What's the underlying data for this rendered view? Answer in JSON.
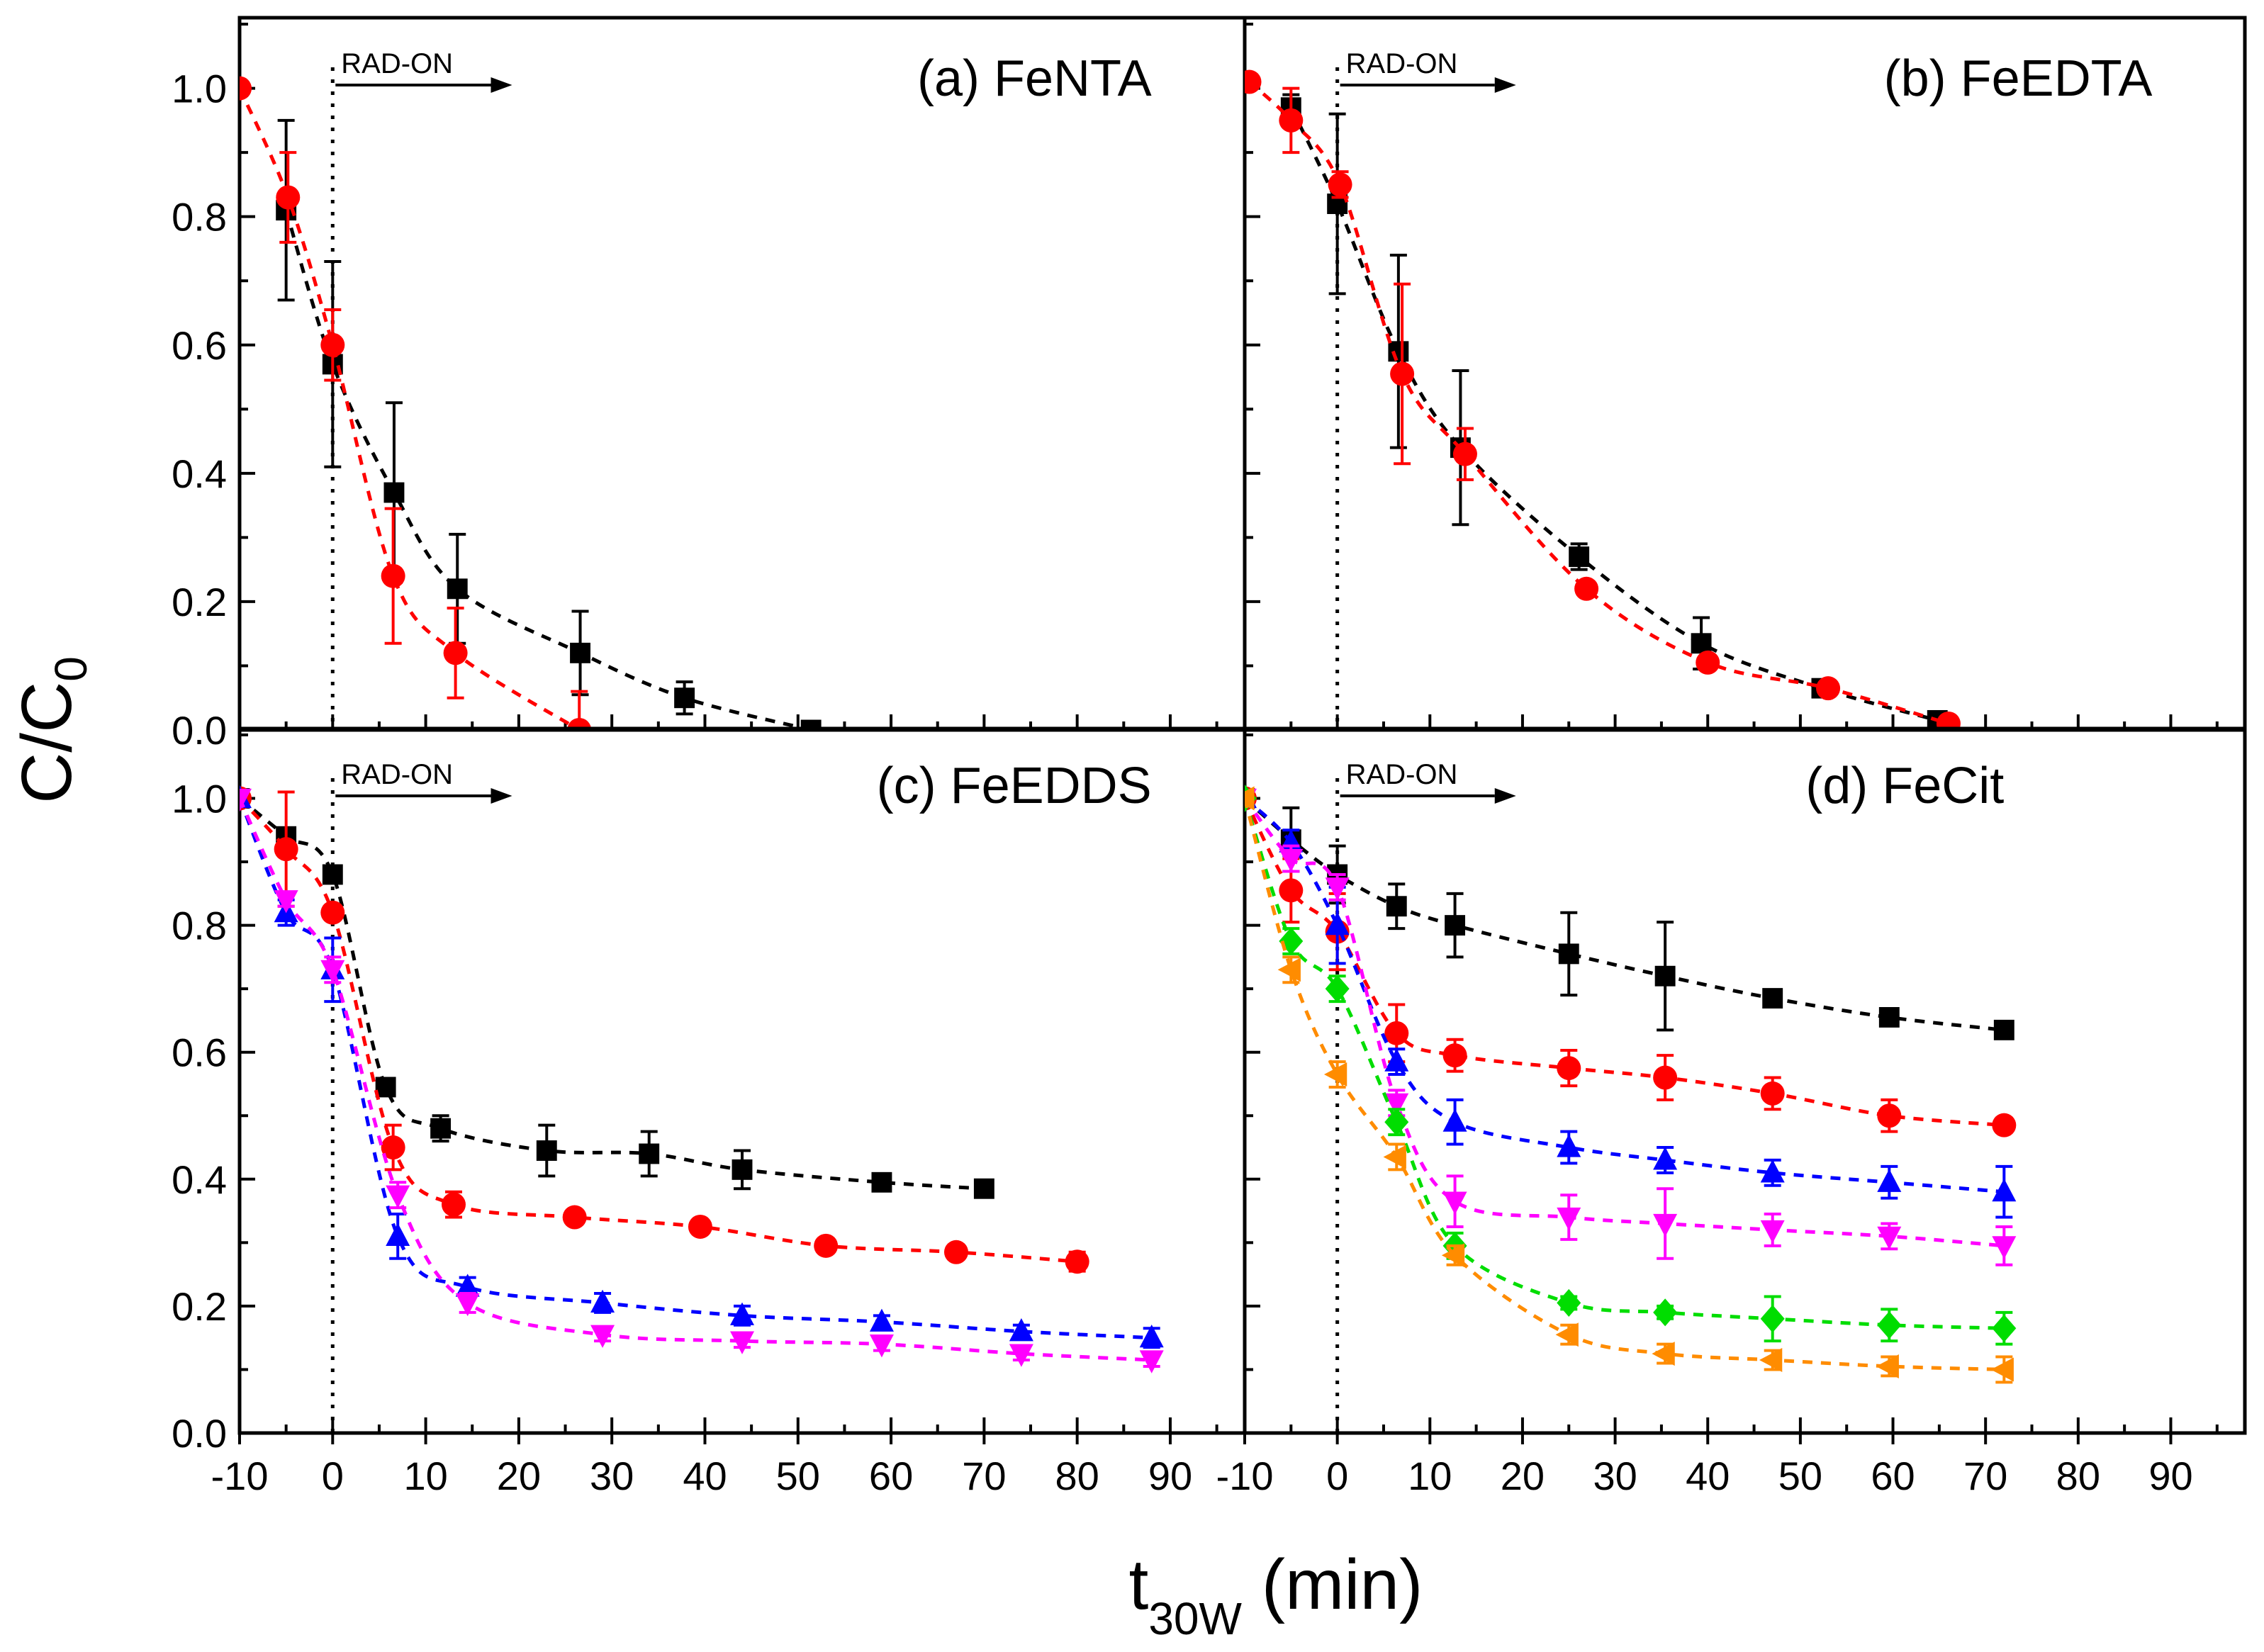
{
  "chart_data": {
    "type": "scatter",
    "ylabel": "C/C",
    "ylabel_sub": "0",
    "xlabel_main": "t",
    "xlabel_sub": "30W",
    "xlabel_unit": " (min)",
    "xlim": [
      -10,
      98
    ],
    "ylim": [
      0,
      1.11
    ],
    "xticks": [
      -10,
      0,
      10,
      20,
      30,
      40,
      50,
      60,
      70,
      80,
      90
    ],
    "yticks": [
      0.0,
      0.2,
      0.4,
      0.6,
      0.8,
      1.0
    ],
    "annotation": "RAD-ON",
    "annotation_x": 0,
    "colors": [
      "#000000",
      "#ff0000",
      "#0000ff",
      "#ff00ff",
      "#00dd00",
      "#ff8c00"
    ],
    "markers": [
      "square",
      "circle",
      "triangle-up",
      "triangle-down",
      "diamond",
      "triangle-left"
    ],
    "panels": [
      {
        "title": "(a) FeNTA",
        "series": [
          {
            "x": [
              -5,
              0,
              6.6,
              13.4,
              26.6,
              37.8,
              51.4
            ],
            "y": [
              0.81,
              0.57,
              0.37,
              0.22,
              0.12,
              0.05,
              0.0
            ],
            "err": [
              0.14,
              0.16,
              0.14,
              0.085,
              0.065,
              0.025,
              0
            ]
          },
          {
            "x": [
              -10,
              -4.8,
              0,
              6.5,
              13.2,
              26.5
            ],
            "y": [
              1.0,
              0.83,
              0.6,
              0.24,
              0.12,
              0.0
            ],
            "err": [
              0,
              0.07,
              0.055,
              0.105,
              0.07,
              0.06
            ]
          }
        ]
      },
      {
        "title": "(b) FeEDTA",
        "series": [
          {
            "x": [
              -5,
              0,
              6.6,
              13.3,
              26.1,
              39.3,
              52.3,
              64.8
            ],
            "y": [
              0.97,
              0.82,
              0.59,
              0.44,
              0.27,
              0.135,
              0.065,
              0.015
            ],
            "err": [
              0.02,
              0.14,
              0.15,
              0.12,
              0.02,
              0.04,
              0,
              0
            ]
          },
          {
            "x": [
              -9.5,
              -5,
              0.3,
              7,
              13.8,
              26.9,
              40,
              53,
              66
            ],
            "y": [
              1.01,
              0.95,
              0.85,
              0.555,
              0.43,
              0.22,
              0.105,
              0.065,
              0.01
            ],
            "err": [
              0,
              0.05,
              0.02,
              0.14,
              0.04,
              0,
              0,
              0,
              0
            ]
          }
        ]
      },
      {
        "title": "(c) FeEDDS",
        "series": [
          {
            "x": [
              -10,
              -5,
              0,
              5.7,
              11.6,
              23,
              34,
              44,
              59,
              70
            ],
            "y": [
              1.0,
              0.94,
              0.88,
              0.545,
              0.48,
              0.445,
              0.44,
              0.415,
              0.395,
              0.385
            ],
            "err": [
              0,
              0.01,
              0.01,
              0.01,
              0.02,
              0.04,
              0.035,
              0.03,
              0.01,
              0.01
            ]
          },
          {
            "x": [
              -10,
              -5,
              0,
              6.5,
              13,
              26,
              39.5,
              53,
              67,
              80
            ],
            "y": [
              1.0,
              0.92,
              0.82,
              0.45,
              0.36,
              0.34,
              0.325,
              0.295,
              0.285,
              0.27
            ],
            "err": [
              0,
              0.09,
              0.01,
              0.035,
              0.02,
              0.01,
              0.01,
              0.01,
              0.01,
              0.015
            ]
          },
          {
            "x": [
              -10,
              -5,
              0,
              7,
              14.5,
              29,
              44,
              59,
              74,
              88
            ],
            "y": [
              1.0,
              0.82,
              0.73,
              0.31,
              0.23,
              0.205,
              0.185,
              0.175,
              0.16,
              0.15
            ],
            "err": [
              0,
              0.02,
              0.05,
              0.035,
              0.015,
              0.015,
              0.015,
              0.01,
              0.01,
              0.015
            ]
          },
          {
            "x": [
              -10,
              -5,
              0,
              7,
              14.5,
              29,
              44,
              59,
              74,
              88
            ],
            "y": [
              1.0,
              0.84,
              0.73,
              0.375,
              0.205,
              0.155,
              0.145,
              0.14,
              0.125,
              0.115
            ],
            "err": [
              0,
              0.01,
              0.02,
              0.02,
              0.015,
              0.01,
              0.01,
              0.01,
              0.01,
              0.01
            ]
          }
        ]
      },
      {
        "title": "(d) FeCit",
        "series": [
          {
            "x": [
              -10,
              -5,
              0,
              6.4,
              12.7,
              25,
              35.4,
              47,
              59.6,
              72
            ],
            "y": [
              1.0,
              0.935,
              0.88,
              0.83,
              0.8,
              0.755,
              0.72,
              0.685,
              0.655,
              0.635
            ],
            "err": [
              0,
              0.05,
              0.045,
              0.035,
              0.05,
              0.065,
              0.085,
              0.01,
              0.01,
              0.01
            ]
          },
          {
            "x": [
              -10,
              -5,
              0,
              6.4,
              12.7,
              25,
              35.4,
              47,
              59.6,
              72
            ],
            "y": [
              1.0,
              0.855,
              0.79,
              0.63,
              0.595,
              0.575,
              0.56,
              0.535,
              0.5,
              0.485
            ],
            "err": [
              0,
              0.05,
              0.06,
              0.045,
              0.025,
              0.028,
              0.035,
              0.025,
              0.025,
              0.01
            ]
          },
          {
            "x": [
              -10,
              -5,
              0,
              6.4,
              12.7,
              25,
              35.4,
              47,
              59.6,
              72
            ],
            "y": [
              1.0,
              0.93,
              0.8,
              0.585,
              0.49,
              0.45,
              0.43,
              0.41,
              0.395,
              0.38
            ],
            "err": [
              0,
              0.02,
              0.06,
              0.02,
              0.035,
              0.025,
              0.02,
              0.02,
              0.025,
              0.04
            ]
          },
          {
            "x": [
              -10,
              -5,
              0,
              6.4,
              12.7,
              25,
              35.4,
              47,
              59.6,
              72
            ],
            "y": [
              1.0,
              0.905,
              0.86,
              0.52,
              0.365,
              0.34,
              0.33,
              0.32,
              0.31,
              0.295
            ],
            "err": [
              0,
              0.02,
              0.02,
              0.02,
              0.04,
              0.035,
              0.055,
              0.025,
              0.02,
              0.03
            ]
          },
          {
            "x": [
              -10,
              -5,
              0,
              6.4,
              12.7,
              25,
              35.4,
              47,
              59.6,
              72
            ],
            "y": [
              1.0,
              0.775,
              0.7,
              0.49,
              0.295,
              0.205,
              0.19,
              0.18,
              0.17,
              0.165
            ],
            "err": [
              0,
              0.02,
              0.02,
              0.02,
              0.02,
              0.01,
              0.01,
              0.035,
              0.025,
              0.025
            ]
          },
          {
            "x": [
              -10,
              -5,
              0,
              6.4,
              12.7,
              25,
              35.4,
              47,
              59.6,
              72
            ],
            "y": [
              1.0,
              0.73,
              0.565,
              0.435,
              0.28,
              0.155,
              0.125,
              0.115,
              0.105,
              0.1
            ],
            "err": [
              0,
              0.02,
              0.02,
              0.02,
              0.015,
              0.015,
              0.015,
              0.015,
              0.015,
              0.02
            ]
          }
        ]
      }
    ]
  }
}
